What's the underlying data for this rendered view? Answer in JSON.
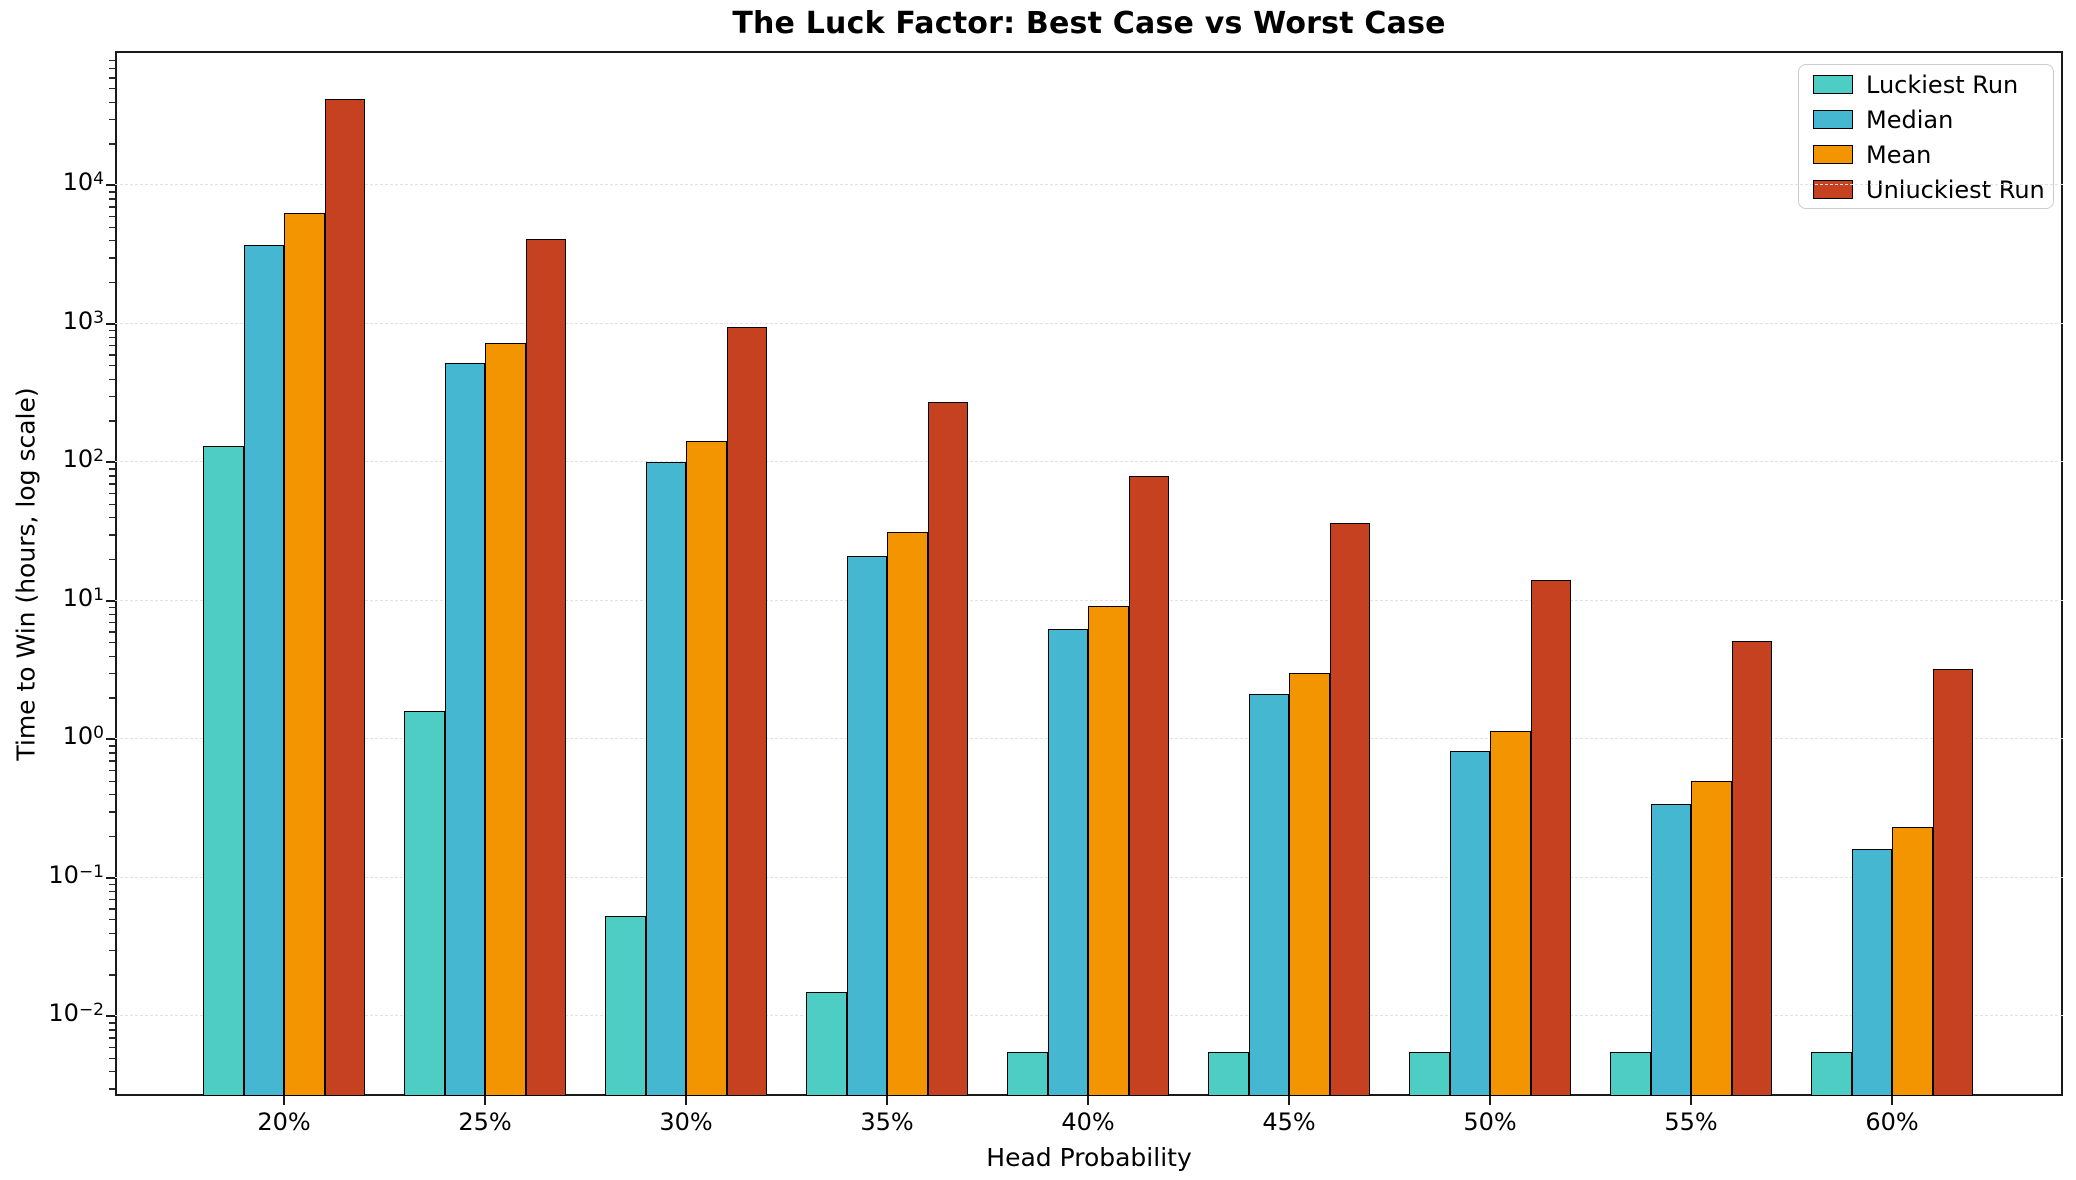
{
  "chart_data": {
    "type": "bar",
    "title": "The Luck Factor: Best Case vs Worst Case",
    "xlabel": "Head Probability",
    "ylabel": "Time to Win (hours, log scale)",
    "categories": [
      "20%",
      "25%",
      "30%",
      "35%",
      "40%",
      "45%",
      "50%",
      "55%",
      "60%"
    ],
    "series": [
      {
        "name": "Luckiest Run",
        "color": "#4ECDC4",
        "values": [
          130,
          1.6,
          0.053,
          0.015,
          0.0055,
          0.0055,
          0.0055,
          0.0055,
          0.0055
        ]
      },
      {
        "name": "Median",
        "color": "#45B7D1",
        "values": [
          3700,
          520,
          100,
          21,
          6.2,
          2.1,
          0.82,
          0.34,
          0.16
        ]
      },
      {
        "name": "Mean",
        "color": "#F29500",
        "values": [
          6300,
          720,
          142,
          31,
          9.1,
          3.0,
          1.15,
          0.5,
          0.23
        ]
      },
      {
        "name": "Unluckiest Run",
        "color": "#C5411F",
        "values": [
          42000,
          4100,
          950,
          270,
          79,
          36,
          14,
          5.1,
          3.2
        ]
      }
    ],
    "yscale": "log",
    "ytick_exponents": [
      4,
      3,
      2,
      1,
      0,
      -1,
      -2
    ],
    "ylim": [
      0.0026,
      93000
    ],
    "grid": "horizontal-dashed",
    "legend_position": "upper-right",
    "bar_edge_color": "#000000",
    "background_color": "#ffffff"
  }
}
